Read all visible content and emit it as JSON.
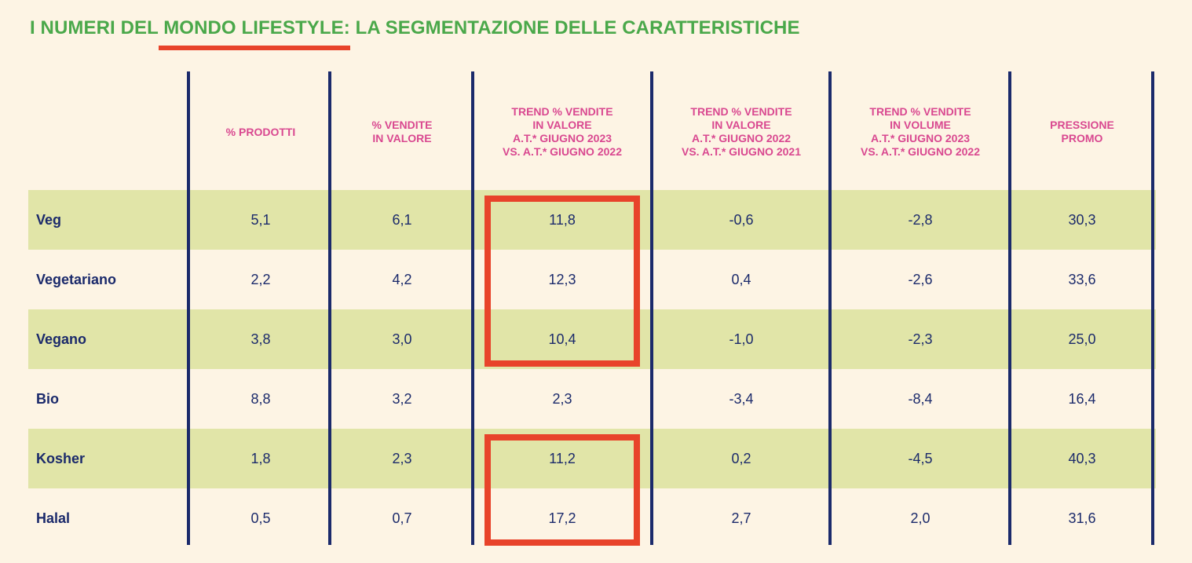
{
  "title": {
    "prefix": "I NUMERI DEL ",
    "highlight": "MONDO LIFESTYLE",
    "suffix": ": LA SEGMENTAZIONE DELLE CARATTERISTICHE"
  },
  "colors": {
    "title": "#4aa84a",
    "header": "#d94890",
    "text": "#1b2a6b",
    "band": "#e1e5a8",
    "background": "#fdf4e4",
    "highlight": "#e8432a"
  },
  "chart_data": {
    "type": "table",
    "columns": [
      {
        "lines": [
          "% PRODOTTI"
        ]
      },
      {
        "lines": [
          "% VENDITE",
          "IN VALORE"
        ]
      },
      {
        "lines": [
          "TREND % VENDITE",
          "IN VALORE",
          "A.T.* GIUGNO 2023",
          "VS. A.T.* GIUGNO 2022"
        ]
      },
      {
        "lines": [
          "TREND % VENDITE",
          "IN VALORE",
          "A.T.* GIUGNO 2022",
          "VS. A.T.* GIUGNO 2021"
        ]
      },
      {
        "lines": [
          "TREND % VENDITE",
          "IN VOLUME",
          "A.T.* GIUGNO 2023",
          "VS. A.T.* GIUGNO 2022"
        ]
      },
      {
        "lines": [
          "PRESSIONE",
          "PROMO"
        ]
      }
    ],
    "rows": [
      {
        "label": "Veg",
        "values": [
          "5,1",
          "6,1",
          "11,8",
          "-0,6",
          "-2,8",
          "30,3"
        ]
      },
      {
        "label": "Vegetariano",
        "values": [
          "2,2",
          "4,2",
          "12,3",
          "0,4",
          "-2,6",
          "33,6"
        ]
      },
      {
        "label": "Vegano",
        "values": [
          "3,8",
          "3,0",
          "10,4",
          "-1,0",
          "-2,3",
          "25,0"
        ]
      },
      {
        "label": "Bio",
        "values": [
          "8,8",
          "3,2",
          "2,3",
          "-3,4",
          "-8,4",
          "16,4"
        ]
      },
      {
        "label": "Kosher",
        "values": [
          "1,8",
          "2,3",
          "11,2",
          "0,2",
          "-4,5",
          "40,3"
        ]
      },
      {
        "label": "Halal",
        "values": [
          "0,5",
          "0,7",
          "17,2",
          "2,7",
          "2,0",
          "31,6"
        ]
      }
    ],
    "banded_rows": [
      "Veg",
      "Vegano",
      "Kosher"
    ],
    "highlighted_groups": [
      {
        "column": 2,
        "rows": [
          "Veg",
          "Vegetariano",
          "Vegano"
        ]
      },
      {
        "column": 2,
        "rows": [
          "Kosher",
          "Halal"
        ]
      }
    ]
  }
}
